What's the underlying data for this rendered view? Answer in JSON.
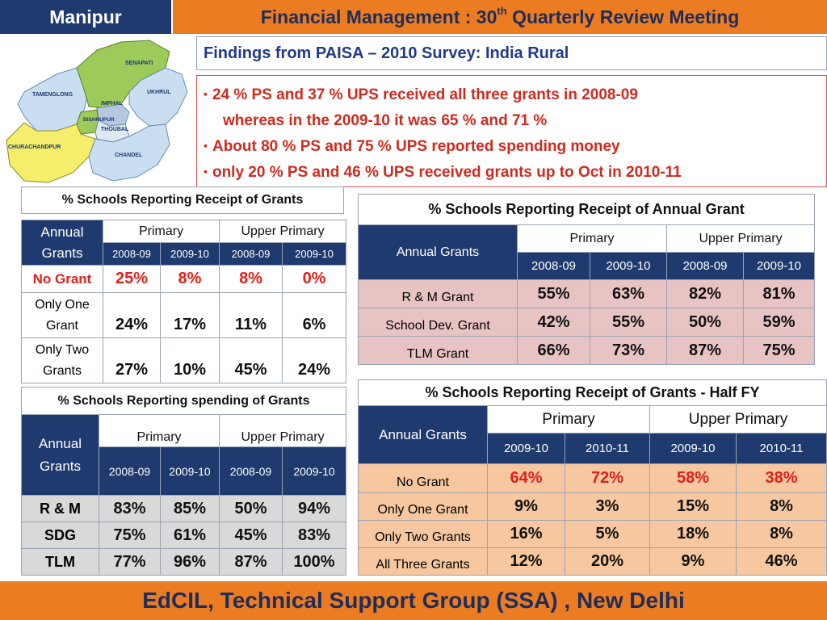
{
  "header": {
    "state": "Manipur",
    "title_pre": "Financial Management : 30",
    "title_sup": "th",
    "title_post": " Quarterly Review Meeting"
  },
  "subtitle": "Findings from PAISA – 2010  Survey: India Rural",
  "findings": [
    "24 % PS and 37 % UPS received all three grants in 2008-09",
    "whereas   in the  2009-10 it was 65 % and 71 %",
    "About 80 % PS  and 75 % UPS reported spending money",
    "only 20 % PS and 46 % UPS received grants up to Oct in 2010-11"
  ],
  "map": {
    "districts": [
      "SENAPATI",
      "TAMENGLONG",
      "UKHRUL",
      "IMPHAL",
      "BISHNUPUR",
      "THOUBAL",
      "CHURACHANDPUR",
      "CHANDEL"
    ]
  },
  "table1": {
    "caption": "% Schools Reporting Receipt of Grants",
    "col_label": "Annual Grants",
    "groups": [
      "Primary",
      "Upper Primary"
    ],
    "years": [
      "2008-09",
      "2009-10",
      "2008-09",
      "2009-10"
    ],
    "rows": [
      {
        "label": "No Grant",
        "values": [
          "25%",
          "8%",
          "8%",
          "0%"
        ]
      },
      {
        "label": "Only One Grant",
        "values": [
          "24%",
          "17%",
          "11%",
          "6%"
        ]
      },
      {
        "label": "Only Two Grants",
        "values": [
          "27%",
          "10%",
          "45%",
          "24%"
        ]
      }
    ]
  },
  "table2": {
    "caption": "% Schools Reporting Receipt of  Annual Grant",
    "col_label": "Annual Grants",
    "groups": [
      "Primary",
      "Upper Primary"
    ],
    "years": [
      "2008-09",
      "2009-10",
      "2008-09",
      "2009-10"
    ],
    "rows": [
      {
        "label": "R & M Grant",
        "values": [
          "55%",
          "63%",
          "82%",
          "81%"
        ]
      },
      {
        "label": "School Dev. Grant",
        "values": [
          "42%",
          "55%",
          "50%",
          "59%"
        ]
      },
      {
        "label": "TLM Grant",
        "values": [
          "66%",
          "73%",
          "87%",
          "75%"
        ]
      }
    ]
  },
  "table3": {
    "caption": "% Schools Reporting spending of Grants",
    "col_label": "Annual Grants",
    "groups": [
      "Primary",
      "Upper Primary"
    ],
    "years": [
      "2008-09",
      "2009-10",
      "2008-09",
      "2009-10"
    ],
    "rows": [
      {
        "label": "R & M",
        "values": [
          "83%",
          "85%",
          "50%",
          "94%"
        ]
      },
      {
        "label": "SDG",
        "values": [
          "75%",
          "61%",
          "45%",
          "83%"
        ]
      },
      {
        "label": "TLM",
        "values": [
          "77%",
          "96%",
          "87%",
          "100%"
        ]
      }
    ]
  },
  "table4": {
    "caption": "% Schools Reporting Receipt of Grants - Half FY",
    "col_label": "Annual Grants",
    "groups": [
      "Primary",
      "Upper Primary"
    ],
    "years": [
      "2009-10",
      "2010-11",
      "2009-10",
      "2010-11"
    ],
    "rows": [
      {
        "label": "No Grant",
        "values": [
          "64%",
          "72%",
          "58%",
          "38%"
        ]
      },
      {
        "label": "Only One Grant",
        "values": [
          "9%",
          "3%",
          "15%",
          "8%"
        ]
      },
      {
        "label": "Only Two Grants",
        "values": [
          "16%",
          "5%",
          "18%",
          "8%"
        ]
      },
      {
        "label": "All Three Grants",
        "values": [
          "12%",
          "20%",
          "9%",
          "46%"
        ]
      }
    ]
  },
  "footer": "EdCIL, Technical Support Group (SSA) , New Delhi",
  "colors": {
    "navy": "#1f3a6e",
    "orange": "#ec7c22",
    "red_text": "#e0201a",
    "pink_row": "#e8c3c3",
    "peach_row": "#f7c8a0",
    "gray_row": "#d9d9d9"
  }
}
